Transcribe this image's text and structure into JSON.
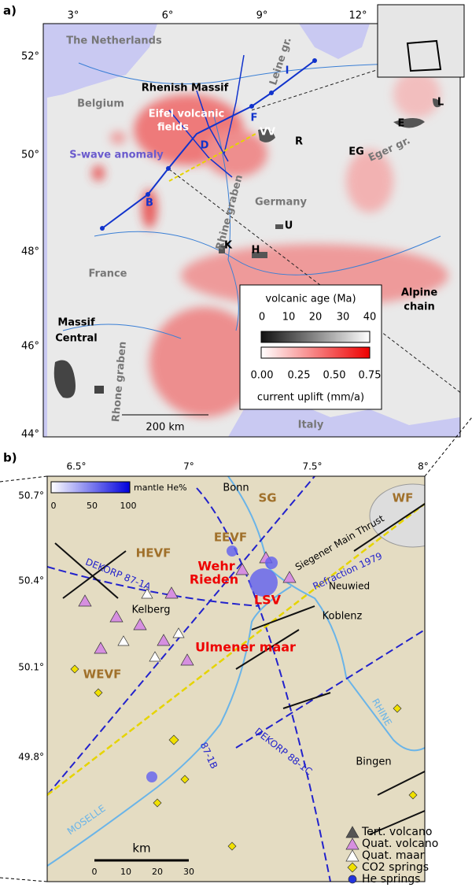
{
  "panel_a": {
    "label": "a)",
    "lon_ticks": [
      "3°",
      "6°",
      "9°",
      "12°"
    ],
    "lat_ticks": [
      "52°",
      "50°",
      "48°",
      "46°",
      "44°"
    ],
    "places": [
      "The Netherlands",
      "Rhenish Massif",
      "Belgium",
      "Eifel volcanic",
      "fields",
      "S-wave anomaly",
      "Leine gr.",
      "VV",
      "R",
      "E",
      "L",
      "EG",
      "Eger gr.",
      "Germany",
      "U",
      "K",
      "H",
      "B",
      "I",
      "F",
      "D",
      "France",
      "Rhine graben",
      "Alpine",
      "chain",
      "Massif",
      "Central",
      "Rhone graben",
      "Italy"
    ],
    "scale_bar": "200 km",
    "legend": {
      "age_title": "volcanic age (Ma)",
      "age_ticks": [
        "0",
        "10",
        "20",
        "30",
        "40"
      ],
      "uplift_ticks": [
        "0.00",
        "0.25",
        "0.50",
        "0.75"
      ],
      "uplift_title": "current uplift (mm/a)"
    }
  },
  "panel_b": {
    "label": "b)",
    "lon_ticks": [
      "6.5°",
      "7°",
      "7.5°",
      "8°"
    ],
    "lat_ticks": [
      "50.7°",
      "50.4°",
      "50.1°",
      "49.8°"
    ],
    "he_legend": {
      "title": "mantle He%",
      "ticks": [
        "0",
        "50",
        "100"
      ]
    },
    "places": [
      "Bonn",
      "SG",
      "WF",
      "EEVF",
      "HEVF",
      "Siegener Main Thrust",
      "Refraction 1979",
      "Wehr",
      "Neuwied",
      "Rieden",
      "DEKORP 87-1A",
      "LSV",
      "Koblenz",
      "Kelberg",
      "Ulmener maar",
      "WEVF",
      "RHINE",
      "87-1B",
      "DEKORP 88-1C",
      "Bingen",
      "MOSELLE"
    ],
    "scale": {
      "title": "km",
      "ticks": [
        "0",
        "10",
        "20",
        "30"
      ]
    },
    "legend": [
      "Tert. volcano",
      "Quat. volcano",
      "Quat. maar",
      "CO2 springs",
      "He springs"
    ]
  }
}
